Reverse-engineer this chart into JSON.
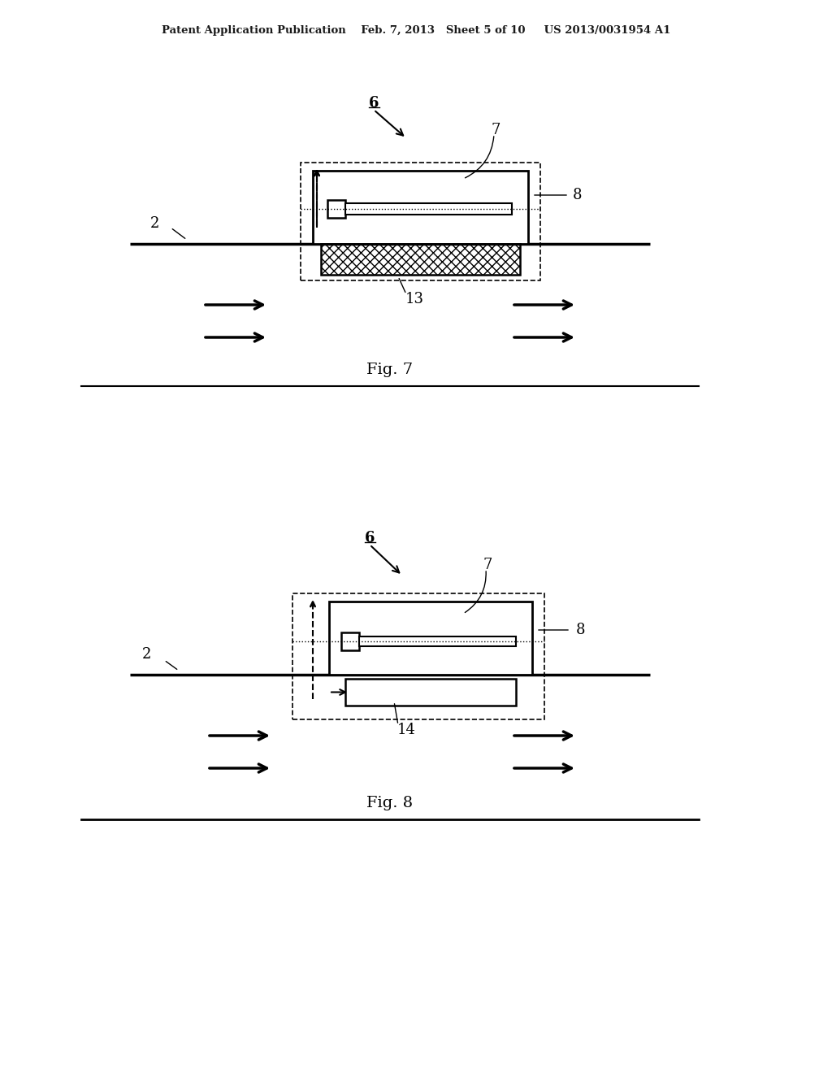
{
  "background_color": "#ffffff",
  "header_text": "Patent Application Publication    Feb. 7, 2013   Sheet 5 of 10     US 2013/0031954 A1",
  "fig7_label": "Fig. 7",
  "fig8_label": "Fig. 8",
  "label_2": "2",
  "label_6": "6",
  "label_7": "7",
  "label_8": "8",
  "label_13": "13",
  "label_14": "14"
}
